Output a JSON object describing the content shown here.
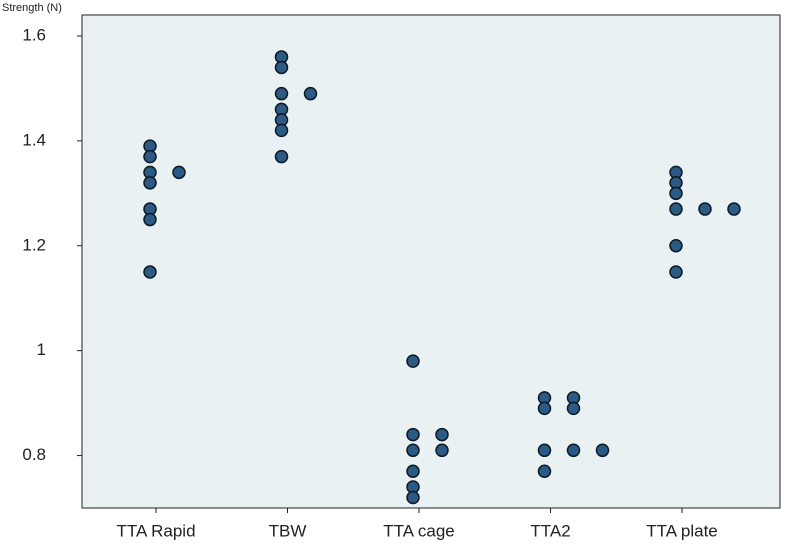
{
  "chart_data": {
    "type": "dot",
    "y_label": "Strength (N)",
    "color": "#2b5a84",
    "ylim": [
      0.7,
      1.64
    ],
    "yticks": [
      0.8,
      1.0,
      1.2,
      1.4,
      1.6
    ],
    "series": [
      {
        "name": "TTA Rapid",
        "values": [
          1.39,
          1.37,
          1.34,
          1.34,
          1.32,
          1.27,
          1.25,
          1.15
        ]
      },
      {
        "name": "TBW",
        "values": [
          1.56,
          1.54,
          1.49,
          1.49,
          1.46,
          1.44,
          1.42,
          1.37
        ]
      },
      {
        "name": "TTA cage",
        "values": [
          0.98,
          0.84,
          0.84,
          0.81,
          0.81,
          0.77,
          0.74,
          0.72
        ]
      },
      {
        "name": "TTA2",
        "values": [
          0.91,
          0.91,
          0.89,
          0.89,
          0.81,
          0.81,
          0.81,
          0.77
        ]
      },
      {
        "name": "TTA plate",
        "values": [
          1.34,
          1.32,
          1.3,
          1.27,
          1.27,
          1.27,
          1.2,
          1.15
        ]
      }
    ]
  }
}
